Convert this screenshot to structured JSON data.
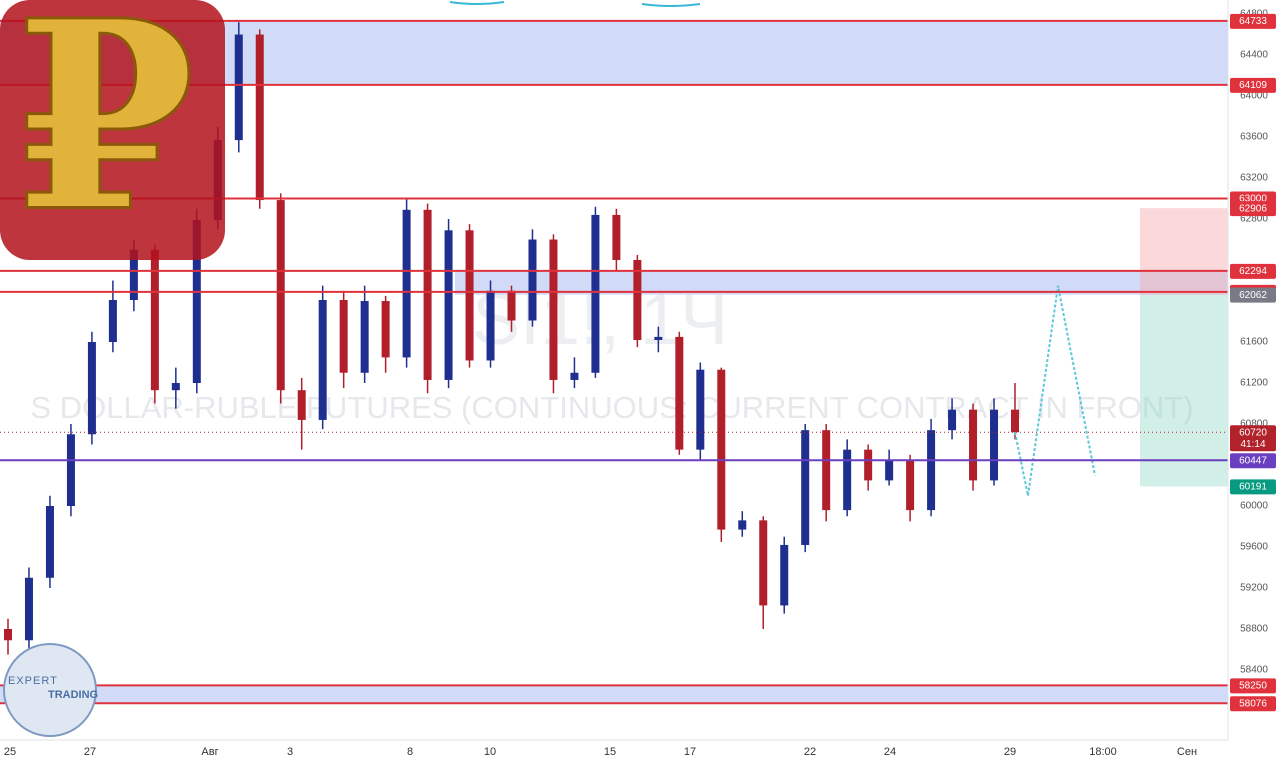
{
  "chart_data": {
    "type": "candlestick",
    "symbol": "SI1!, 1Ч",
    "description": "S DOLLAR-RUBLE FUTURES (CONTINUOUS: CURRENT CONTRACT IN FRONT)",
    "logo_symbol": "₽",
    "brand": [
      "EXPERT",
      "TRADING"
    ],
    "up_color": "#1e2f8f",
    "down_color": "#b11f2a",
    "ylim": [
      57717,
      64937
    ],
    "yticks": [
      64800,
      64400,
      64000,
      63600,
      63200,
      62800,
      61600,
      61200,
      60800,
      60000,
      59600,
      59200,
      58800,
      58400
    ],
    "x_labels": [
      "25",
      "27",
      "Авг",
      "3",
      "8",
      "10",
      "15",
      "17",
      "22",
      "24",
      "29",
      "18:00",
      "Сен"
    ],
    "ohlc": [
      [
        58800,
        58900,
        58550,
        58690
      ],
      [
        58690,
        59400,
        58600,
        59300
      ],
      [
        59300,
        60100,
        59200,
        60000
      ],
      [
        60000,
        60800,
        59900,
        60700
      ],
      [
        60700,
        61700,
        60600,
        61600
      ],
      [
        61600,
        62200,
        61500,
        62010
      ],
      [
        62010,
        62600,
        61900,
        62500
      ],
      [
        62500,
        62550,
        61000,
        61130
      ],
      [
        61130,
        61350,
        60950,
        61200
      ],
      [
        61200,
        62900,
        61100,
        62790
      ],
      [
        62790,
        63700,
        62700,
        63570
      ],
      [
        63570,
        64720,
        63450,
        64600
      ],
      [
        64600,
        64650,
        62900,
        62985
      ],
      [
        62985,
        63050,
        61000,
        61130
      ],
      [
        61130,
        61250,
        60550,
        60840
      ],
      [
        60840,
        62150,
        60750,
        62010
      ],
      [
        62010,
        62100,
        61150,
        61300
      ],
      [
        61300,
        62150,
        61200,
        62000
      ],
      [
        62000,
        62050,
        61300,
        61450
      ],
      [
        61450,
        63000,
        61350,
        62890
      ],
      [
        62890,
        62950,
        61100,
        61230
      ],
      [
        61230,
        62800,
        61150,
        62690
      ],
      [
        62690,
        62750,
        61350,
        61420
      ],
      [
        61420,
        62200,
        61350,
        62100
      ],
      [
        62100,
        62150,
        61700,
        61810
      ],
      [
        61810,
        62700,
        61750,
        62600
      ],
      [
        62600,
        62650,
        61100,
        61230
      ],
      [
        61230,
        61450,
        61150,
        61300
      ],
      [
        61300,
        62920,
        61250,
        62840
      ],
      [
        62840,
        62900,
        62300,
        62400
      ],
      [
        62400,
        62450,
        61550,
        61620
      ],
      [
        61620,
        61750,
        61500,
        61650
      ],
      [
        61650,
        61700,
        60500,
        60550
      ],
      [
        60550,
        61400,
        60450,
        61330
      ],
      [
        61330,
        61350,
        59650,
        59770
      ],
      [
        59770,
        59950,
        59700,
        59860
      ],
      [
        59860,
        59900,
        58800,
        59030
      ],
      [
        59030,
        59700,
        58950,
        59620
      ],
      [
        59620,
        60800,
        59550,
        60740
      ],
      [
        60740,
        60800,
        59850,
        59960
      ],
      [
        59960,
        60650,
        59900,
        60550
      ],
      [
        60550,
        60600,
        60150,
        60250
      ],
      [
        60250,
        60550,
        60200,
        60450
      ],
      [
        60450,
        60500,
        59850,
        59960
      ],
      [
        59960,
        60850,
        59900,
        60740
      ],
      [
        60740,
        61050,
        60650,
        60940
      ],
      [
        60940,
        61000,
        60150,
        60250
      ],
      [
        60250,
        61050,
        60200,
        60940
      ],
      [
        60940,
        61200,
        60650,
        60720
      ]
    ],
    "projection": [
      60720,
      60100,
      62150,
      60300
    ],
    "projection_color": "#5bc8dc",
    "levels": [
      {
        "value": 64733,
        "color": "#e0323c",
        "line": true
      },
      {
        "value": 64109,
        "color": "#e0323c",
        "line": true
      },
      {
        "value": 63000,
        "color": "#e0323c",
        "line": true
      },
      {
        "value": 62906,
        "color": "#e0323c",
        "line": false
      },
      {
        "value": 62294,
        "color": "#e0323c",
        "line": true
      },
      {
        "value": 62089,
        "color": "#e0323c",
        "line": true
      },
      {
        "value": 62062,
        "color": "#787b86",
        "line": false
      },
      {
        "value": 60720,
        "color": "#b2222a",
        "line": false,
        "countdown": "41:14"
      },
      {
        "value": 60447,
        "color": "#6a3fc0",
        "line": true
      },
      {
        "value": 60191,
        "color": "#089981",
        "line": false
      },
      {
        "value": 58250,
        "color": "#e0323c",
        "line": true
      },
      {
        "value": 58076,
        "color": "#e0323c",
        "line": true
      }
    ]
  }
}
